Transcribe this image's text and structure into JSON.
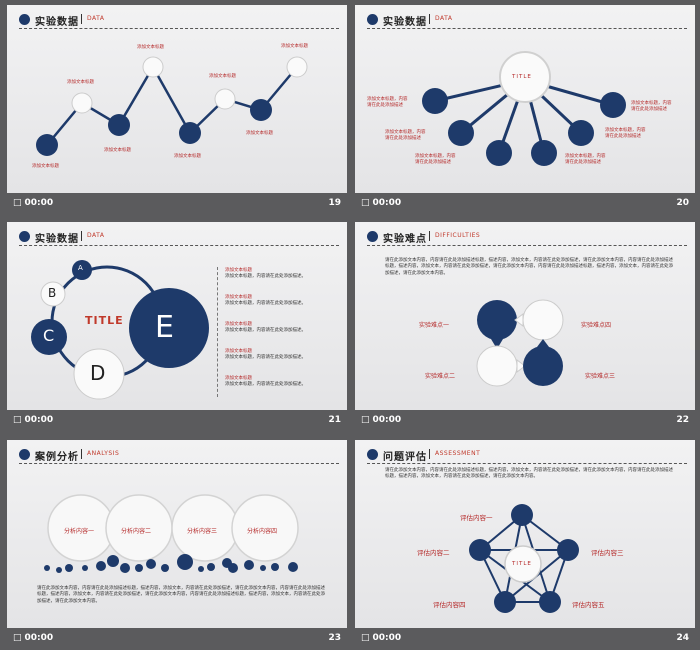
{
  "colors": {
    "navy": "#1e3a6a",
    "red": "#b52a2a"
  },
  "footer": {
    "time": "00:00",
    "icon": "square-mark-icon"
  },
  "slides": [
    {
      "page": "19",
      "title": "实验数据",
      "subtitle": "DATA",
      "labels": [
        "添加文本标题",
        "添加文本标题",
        "添加文本标题",
        "添加文本标题",
        "添加文本标题",
        "添加文本标题",
        "添加文本标题",
        "添加文本标题"
      ]
    },
    {
      "page": "20",
      "title": "实验数据",
      "subtitle": "DATA",
      "center": "TITLE",
      "left_texts": [
        "添加文本标题，内容\n请在此处添加描述",
        "添加文本标题，内容\n请在此处添加描述",
        "添加文本标题，内容\n请在此处添加描述"
      ],
      "right_texts": [
        "添加文本标题，内容\n请在此处添加描述",
        "添加文本标题，内容\n请在此处添加描述",
        "添加文本标题，内容\n请在此处添加描述"
      ]
    },
    {
      "page": "21",
      "title": "实验数据",
      "subtitle": "DATA",
      "center": "TITLE",
      "letters": [
        "A",
        "B",
        "C",
        "D",
        "E"
      ],
      "items": [
        {
          "head": "添加文本标题",
          "body": "添加文本标题，内容请在此处添加描述。"
        },
        {
          "head": "添加文本标题",
          "body": "添加文本标题，内容请在此处添加描述。"
        },
        {
          "head": "添加文本标题",
          "body": "添加文本标题，内容请在此处添加描述。"
        },
        {
          "head": "添加文本标题",
          "body": "添加文本标题，内容请在此处添加描述。"
        },
        {
          "head": "添加文本标题",
          "body": "添加文本标题，内容请在此处添加描述。"
        }
      ]
    },
    {
      "page": "22",
      "title": "实验难点",
      "subtitle": "DIFFICULTIES",
      "paragraph": "请在此添加文本内容，内容请在此处添加描述标题，描述内容，添加文本，内容请在此处添加描述，请在此添加文本内容，内容请在此处添加描述标题，描述内容，添加文本，内容请在此处添加描述，请在此添加文本内容，内容请在此处添加描述标题，描述内容，添加文本，内容请在此处添加描述，请在此添加文本内容。",
      "points": [
        "实验难点一",
        "实验难点四",
        "实验难点二",
        "实验难点三"
      ]
    },
    {
      "page": "23",
      "title": "案例分析",
      "subtitle": "ANALYSIS",
      "circles": [
        "分析内容一",
        "分析内容二",
        "分析内容三",
        "分析内容四"
      ],
      "paragraph": "请在此添加文本内容，内容请在此处添加描述标题，描述内容，添加文本，内容请在此处添加描述，请在此添加文本内容，内容请在此处添加描述标题，描述内容，添加文本，内容请在此处添加描述，请在此添加文本内容，内容请在此处添加描述标题，描述内容，添加文本，内容请在此处添加描述，请在此添加文本内容。"
    },
    {
      "page": "24",
      "title": "问题评估",
      "subtitle": "ASSESSMENT",
      "center": "TITLE",
      "paragraph": "请在此添加文本内容，内容请在此处添加描述标题，描述内容，添加文本，内容请在此处添加描述，请在此添加文本内容，内容请在此处添加描述标题，描述内容，添加文本，内容请在此处添加描述，请在此添加文本内容。",
      "items": [
        "评估内容一",
        "评估内容二",
        "评估内容三",
        "评估内容四",
        "评估内容五"
      ]
    }
  ]
}
